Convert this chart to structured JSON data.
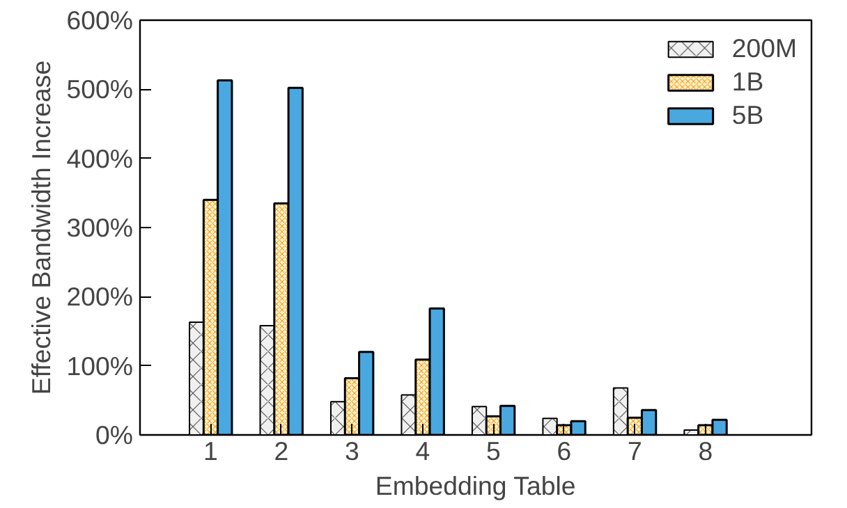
{
  "chart_data": {
    "type": "bar",
    "xlabel": "Embedding Table",
    "ylabel": "Effective Bandwidth Increase",
    "categories": [
      "1",
      "2",
      "3",
      "4",
      "5",
      "6",
      "7",
      "8"
    ],
    "series": [
      {
        "name": "200M",
        "color": "#f0f0f0",
        "values": [
          163,
          158,
          48,
          58,
          41,
          24,
          68,
          7
        ]
      },
      {
        "name": "1B",
        "color": "#fff2cc",
        "values": [
          340,
          335,
          82,
          109,
          27,
          14,
          25,
          14
        ]
      },
      {
        "name": "5B",
        "color": "#4aa8e0",
        "values": [
          513,
          502,
          120,
          183,
          42,
          20,
          36,
          22
        ]
      }
    ],
    "ylim": [
      0,
      600
    ],
    "yticks": [
      {
        "value": 0,
        "label": "0%"
      },
      {
        "value": 100,
        "label": "100%"
      },
      {
        "value": 200,
        "label": "200%"
      },
      {
        "value": 300,
        "label": "300%"
      },
      {
        "value": 400,
        "label": "400%"
      },
      {
        "value": 500,
        "label": "500%"
      },
      {
        "value": 600,
        "label": "600%"
      }
    ],
    "grid": false,
    "legend": "top right"
  }
}
